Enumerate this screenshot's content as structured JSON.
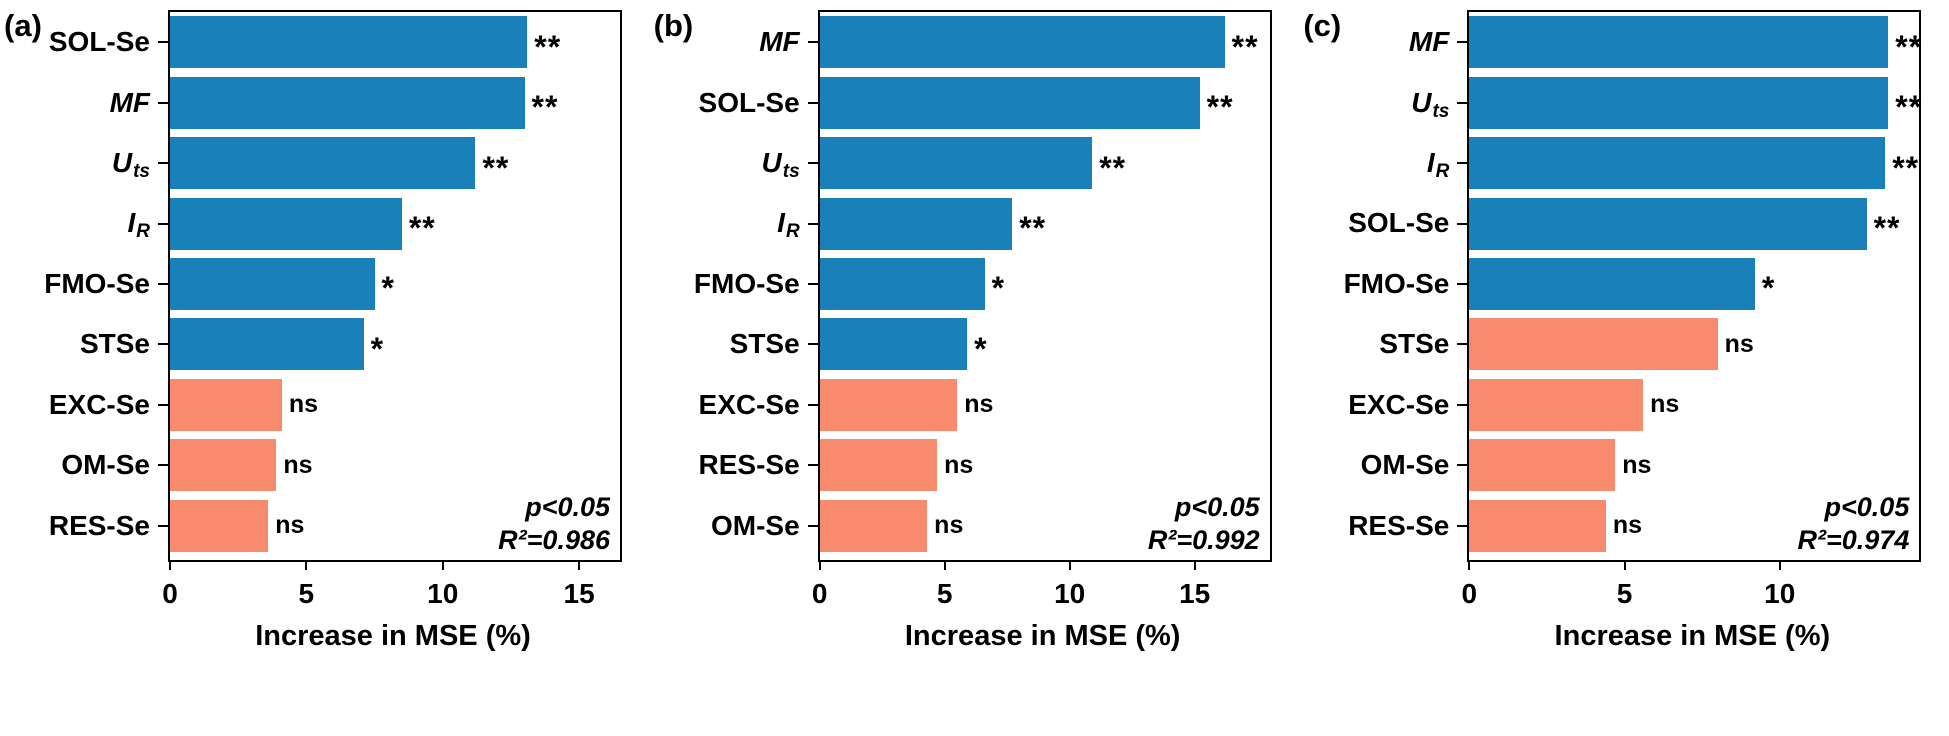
{
  "figure": {
    "background": "#ffffff",
    "axis_color": "#000000",
    "bar_color_significant": "#1a80b9",
    "bar_color_not_significant": "#f88a6d",
    "xlabel": "Increase in MSE (%)"
  },
  "chart_data": [
    {
      "type": "bar",
      "orientation": "horizontal",
      "panel_id": "a",
      "panel_label": "(a)",
      "xlabel": "Increase in MSE (%)",
      "xlim": [
        0,
        16.5
      ],
      "xticks": [
        0,
        5,
        10,
        15
      ],
      "grid": false,
      "legend": "none",
      "annotation": [
        "p<0.05",
        "R²=0.986"
      ],
      "categories": [
        {
          "main": "SOL-Se",
          "sub": "",
          "italic": false
        },
        {
          "main": "MF",
          "sub": "",
          "italic": true
        },
        {
          "main": "U",
          "sub": "ts",
          "italic": true
        },
        {
          "main": "I",
          "sub": "R",
          "italic": true
        },
        {
          "main": "FMO-Se",
          "sub": "",
          "italic": false
        },
        {
          "main": "STSe",
          "sub": "",
          "italic": false
        },
        {
          "main": "EXC-Se",
          "sub": "",
          "italic": false
        },
        {
          "main": "OM-Se",
          "sub": "",
          "italic": false
        },
        {
          "main": "RES-Se",
          "sub": "",
          "italic": false
        }
      ],
      "values": [
        13.1,
        13.0,
        11.2,
        8.5,
        7.5,
        7.1,
        4.1,
        3.9,
        3.6
      ],
      "significance": [
        "**",
        "**",
        "**",
        "**",
        "*",
        "*",
        "ns",
        "ns",
        "ns"
      ]
    },
    {
      "type": "bar",
      "orientation": "horizontal",
      "panel_id": "b",
      "panel_label": "(b)",
      "xlabel": "Increase in MSE (%)",
      "xlim": [
        0,
        18
      ],
      "xticks": [
        0,
        5,
        10,
        15
      ],
      "grid": false,
      "legend": "none",
      "annotation": [
        "p<0.05",
        "R²=0.992"
      ],
      "categories": [
        {
          "main": "MF",
          "sub": "",
          "italic": true
        },
        {
          "main": "SOL-Se",
          "sub": "",
          "italic": false
        },
        {
          "main": "U",
          "sub": "ts",
          "italic": true
        },
        {
          "main": "I",
          "sub": "R",
          "italic": true
        },
        {
          "main": "FMO-Se",
          "sub": "",
          "italic": false
        },
        {
          "main": "STSe",
          "sub": "",
          "italic": false
        },
        {
          "main": "EXC-Se",
          "sub": "",
          "italic": false
        },
        {
          "main": "RES-Se",
          "sub": "",
          "italic": false
        },
        {
          "main": "OM-Se",
          "sub": "",
          "italic": false
        }
      ],
      "values": [
        16.2,
        15.2,
        10.9,
        7.7,
        6.6,
        5.9,
        5.5,
        4.7,
        4.3
      ],
      "significance": [
        "**",
        "**",
        "**",
        "**",
        "*",
        "*",
        "ns",
        "ns",
        "ns"
      ]
    },
    {
      "type": "bar",
      "orientation": "horizontal",
      "panel_id": "c",
      "panel_label": "(c)",
      "xlabel": "Increase in MSE (%)",
      "xlim": [
        0,
        14.5
      ],
      "xticks": [
        0,
        5,
        10
      ],
      "grid": false,
      "legend": "none",
      "annotation": [
        "p<0.05",
        "R²=0.974"
      ],
      "categories": [
        {
          "main": "MF",
          "sub": "",
          "italic": true
        },
        {
          "main": "U",
          "sub": "ts",
          "italic": true
        },
        {
          "main": "I",
          "sub": "R",
          "italic": true
        },
        {
          "main": "SOL-Se",
          "sub": "",
          "italic": false
        },
        {
          "main": "FMO-Se",
          "sub": "",
          "italic": false
        },
        {
          "main": "STSe",
          "sub": "",
          "italic": false
        },
        {
          "main": "EXC-Se",
          "sub": "",
          "italic": false
        },
        {
          "main": "OM-Se",
          "sub": "",
          "italic": false
        },
        {
          "main": "RES-Se",
          "sub": "",
          "italic": false
        }
      ],
      "values": [
        13.5,
        13.5,
        13.4,
        12.8,
        9.2,
        8.0,
        5.6,
        4.7,
        4.4
      ],
      "significance": [
        "**",
        "**",
        "**",
        "**",
        "*",
        "ns",
        "ns",
        "ns",
        "ns"
      ]
    }
  ]
}
